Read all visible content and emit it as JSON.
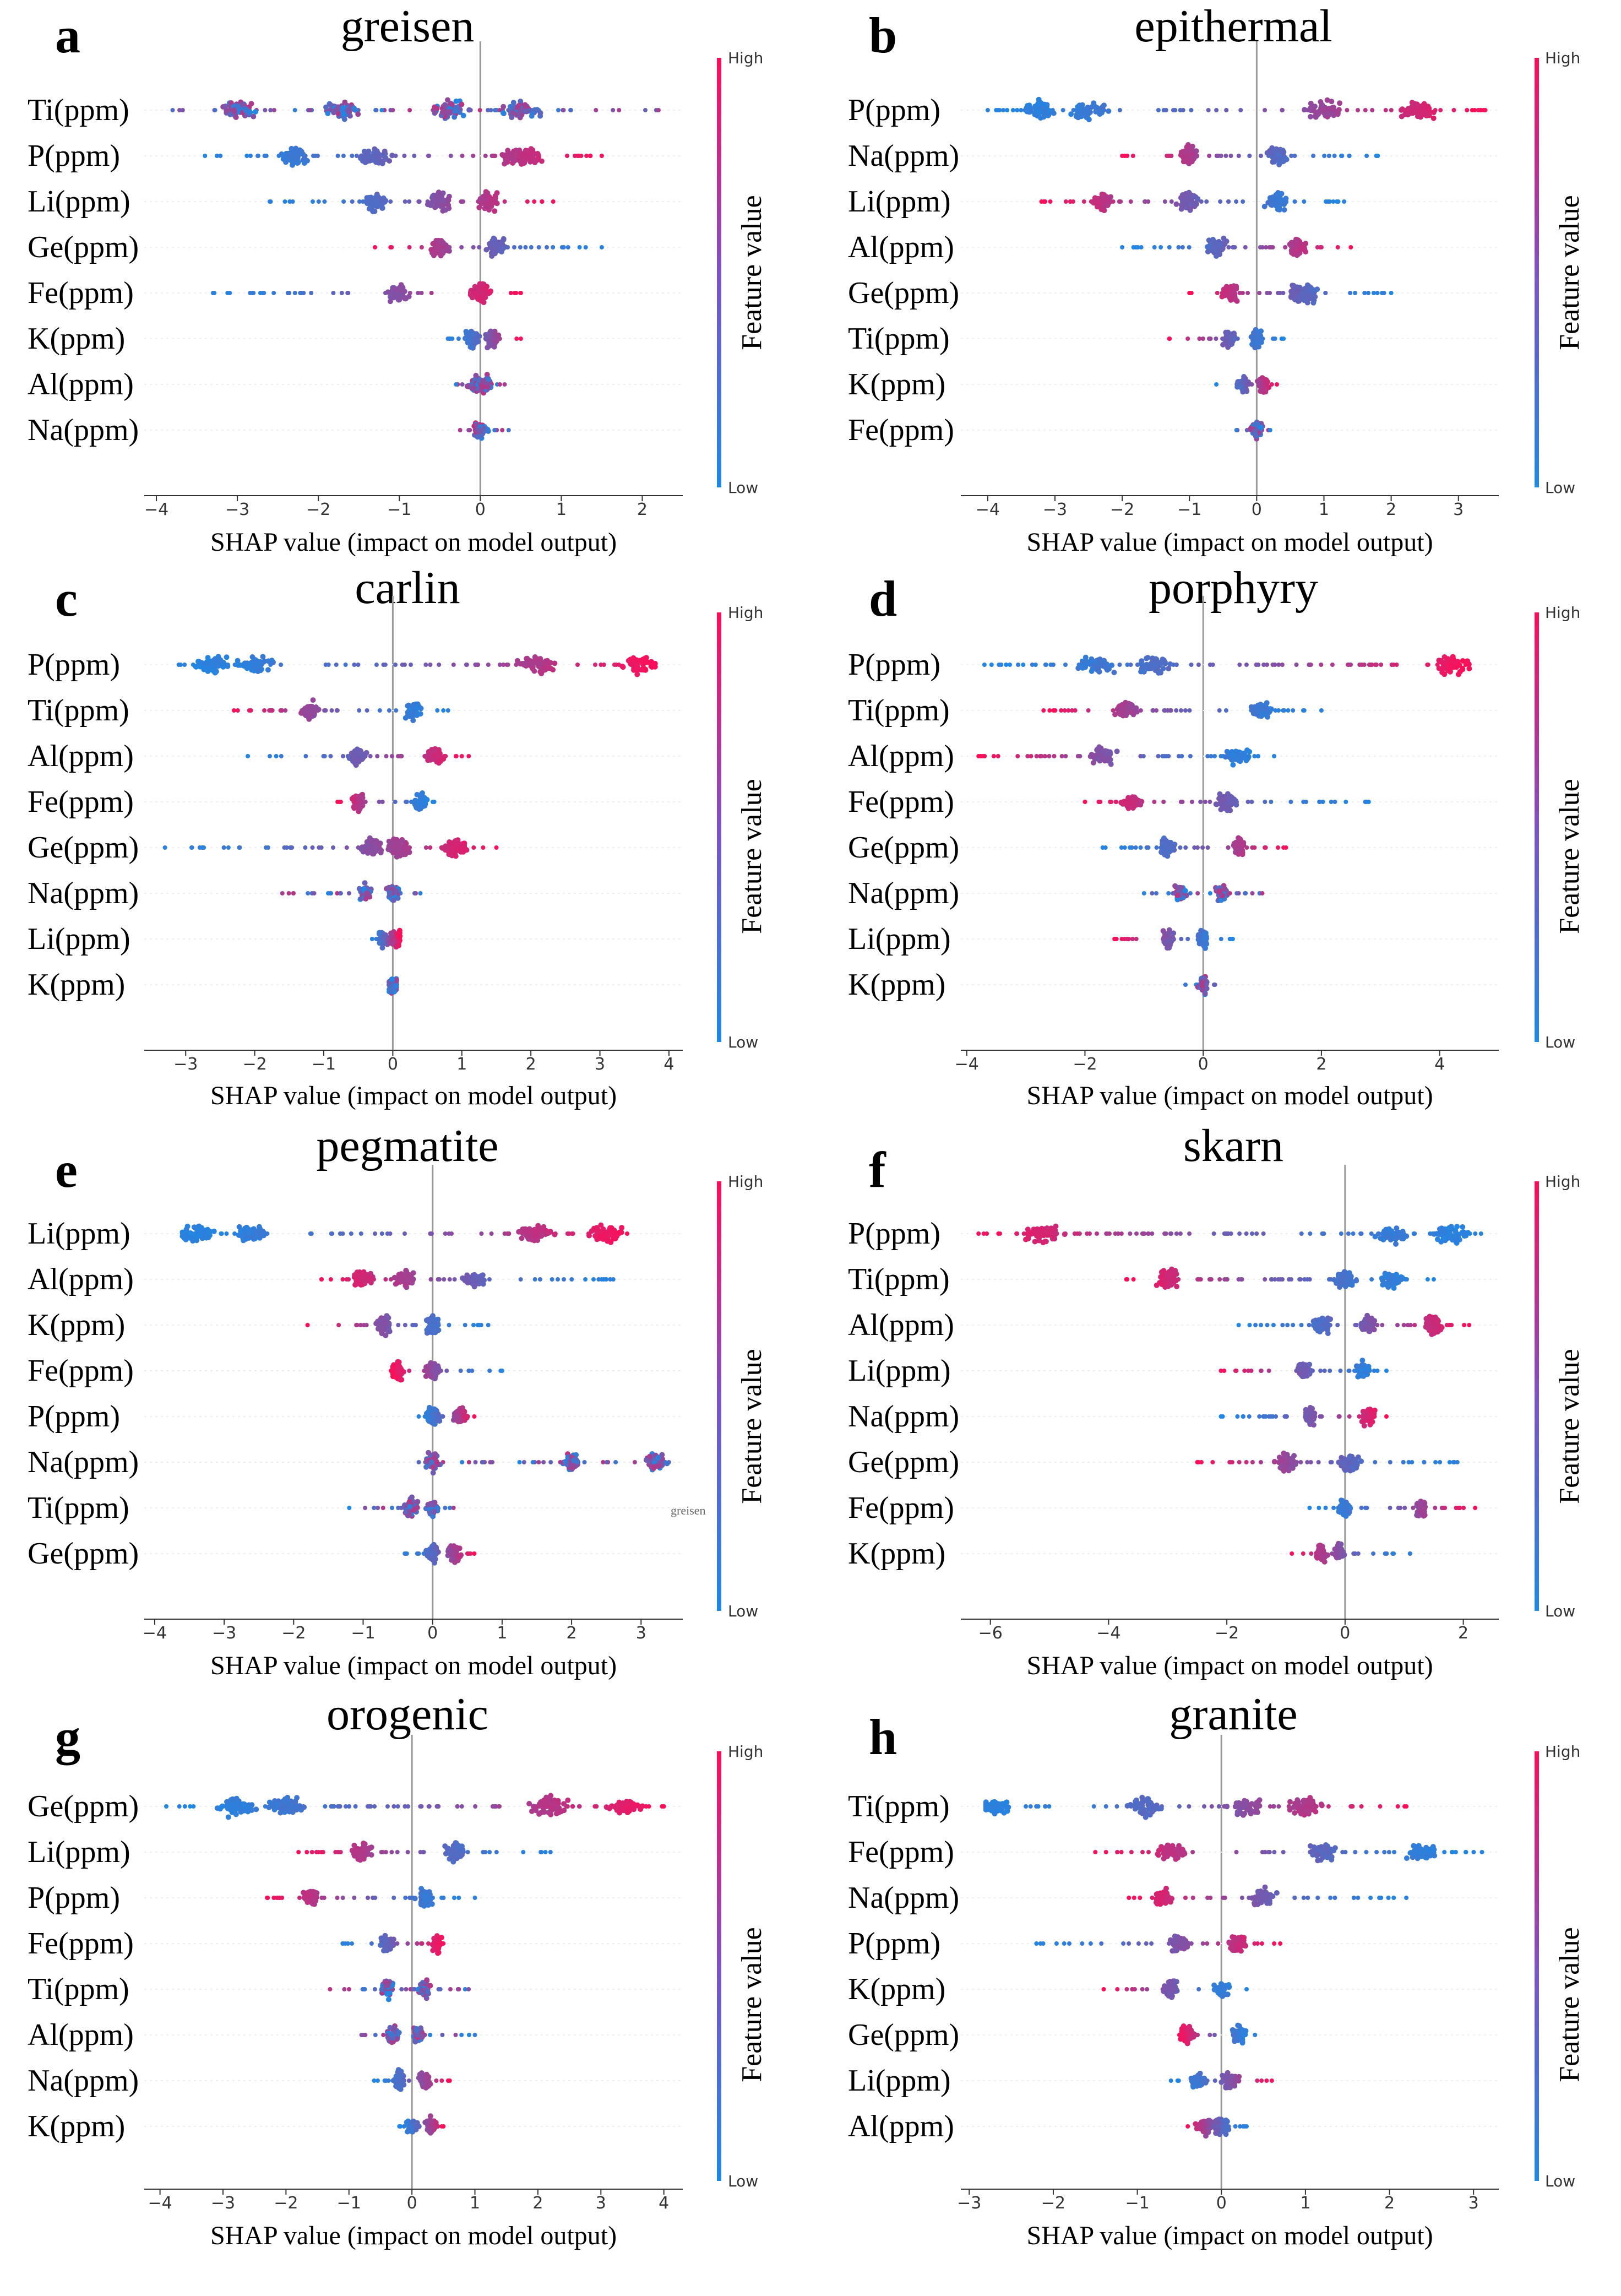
{
  "colors": {
    "low": "#1e88e5",
    "high": "#ff0d57",
    "zero_line": "#999999",
    "axis": "#333333"
  },
  "chart_data": [
    {
      "panel": "a",
      "type": "scatter",
      "title": "greisen",
      "xlabel": "SHAP value (impact on model output)",
      "colorbar": {
        "title": "Feature value",
        "high": "High",
        "low": "Low"
      },
      "xlim": [
        -4.15,
        2.5
      ],
      "xticks": [
        -4,
        -3,
        -2,
        -1,
        0,
        1,
        2
      ],
      "features": [
        {
          "name": "Ti(ppm)",
          "min": -3.8,
          "max": 2.2,
          "clusters": [
            -3.0,
            -1.7,
            -0.4,
            0.5
          ],
          "high_side": "mixed"
        },
        {
          "name": "P(ppm)",
          "min": -3.4,
          "max": 1.5,
          "clusters": [
            -2.3,
            -1.3,
            0.4,
            0.6
          ],
          "high_side": "right"
        },
        {
          "name": "Li(ppm)",
          "min": -2.6,
          "max": 0.9,
          "clusters": [
            -1.3,
            -0.5,
            0.1
          ],
          "high_side": "right"
        },
        {
          "name": "Ge(ppm)",
          "min": -1.3,
          "max": 1.5,
          "clusters": [
            -0.5,
            0.2
          ],
          "high_side": "left"
        },
        {
          "name": "Fe(ppm)",
          "min": -3.3,
          "max": 0.5,
          "clusters": [
            -1.0,
            0.0
          ],
          "high_side": "right"
        },
        {
          "name": "K(ppm)",
          "min": -0.4,
          "max": 0.5,
          "clusters": [
            -0.1,
            0.15
          ],
          "high_side": "right"
        },
        {
          "name": "Al(ppm)",
          "min": -0.3,
          "max": 0.3,
          "clusters": [
            -0.05,
            0.05
          ],
          "high_side": "mixed"
        },
        {
          "name": "Na(ppm)",
          "min": -0.25,
          "max": 0.35,
          "clusters": [
            0.0
          ],
          "high_side": "mixed"
        }
      ]
    },
    {
      "panel": "b",
      "type": "scatter",
      "title": "epithermal",
      "xlabel": "SHAP value (impact on model output)",
      "colorbar": {
        "title": "Feature value",
        "high": "High",
        "low": "Low"
      },
      "xlim": [
        -4.4,
        3.6
      ],
      "xticks": [
        -4,
        -3,
        -2,
        -1,
        0,
        1,
        2,
        3
      ],
      "features": [
        {
          "name": "P(ppm)",
          "min": -4.0,
          "max": 3.4,
          "clusters": [
            -3.2,
            -2.5,
            1.0,
            2.4
          ],
          "high_side": "right"
        },
        {
          "name": "Na(ppm)",
          "min": -2.0,
          "max": 1.8,
          "clusters": [
            -1.0,
            0.3
          ],
          "high_side": "left"
        },
        {
          "name": "Li(ppm)",
          "min": -3.2,
          "max": 1.3,
          "clusters": [
            -2.3,
            -1.0,
            0.3
          ],
          "high_side": "left"
        },
        {
          "name": "Al(ppm)",
          "min": -2.0,
          "max": 1.4,
          "clusters": [
            -0.6,
            0.6
          ],
          "high_side": "right"
        },
        {
          "name": "Ge(ppm)",
          "min": -1.0,
          "max": 2.0,
          "clusters": [
            -0.4,
            0.6,
            0.8
          ],
          "high_side": "left"
        },
        {
          "name": "Ti(ppm)",
          "min": -1.3,
          "max": 0.4,
          "clusters": [
            -0.4,
            0.0
          ],
          "high_side": "left"
        },
        {
          "name": "K(ppm)",
          "min": -0.6,
          "max": 0.3,
          "clusters": [
            -0.2,
            0.1
          ],
          "high_side": "right"
        },
        {
          "name": "Fe(ppm)",
          "min": -0.3,
          "max": 0.2,
          "clusters": [
            0.0
          ],
          "high_side": "mixed"
        }
      ]
    },
    {
      "panel": "c",
      "type": "scatter",
      "title": "carlin",
      "xlabel": "SHAP value (impact on model output)",
      "colorbar": {
        "title": "Feature value",
        "high": "High",
        "low": "Low"
      },
      "xlim": [
        -3.6,
        4.2
      ],
      "xticks": [
        -3,
        -2,
        -1,
        0,
        1,
        2,
        3,
        4
      ],
      "features": [
        {
          "name": "P(ppm)",
          "min": -3.1,
          "max": 3.8,
          "clusters": [
            -2.6,
            -2.0,
            2.1,
            3.6
          ],
          "high_side": "right"
        },
        {
          "name": "Ti(ppm)",
          "min": -2.3,
          "max": 0.8,
          "clusters": [
            -1.2,
            0.3
          ],
          "high_side": "left"
        },
        {
          "name": "Al(ppm)",
          "min": -2.1,
          "max": 1.1,
          "clusters": [
            -0.5,
            0.6
          ],
          "high_side": "right"
        },
        {
          "name": "Fe(ppm)",
          "min": -0.8,
          "max": 0.6,
          "clusters": [
            -0.5,
            0.4
          ],
          "high_side": "left"
        },
        {
          "name": "Ge(ppm)",
          "min": -3.3,
          "max": 1.5,
          "clusters": [
            -0.3,
            0.1,
            0.9
          ],
          "high_side": "right"
        },
        {
          "name": "Na(ppm)",
          "min": -1.6,
          "max": 0.4,
          "clusters": [
            -0.4,
            0.0
          ],
          "high_side": "mixed"
        },
        {
          "name": "Li(ppm)",
          "min": -0.3,
          "max": 0.1,
          "clusters": [
            -0.15,
            0.05
          ],
          "high_side": "right"
        },
        {
          "name": "K(ppm)",
          "min": -0.05,
          "max": 0.05,
          "clusters": [
            0.0
          ],
          "high_side": "mixed"
        }
      ]
    },
    {
      "panel": "d",
      "type": "scatter",
      "title": "porphyry",
      "xlabel": "SHAP value (impact on model output)",
      "colorbar": {
        "title": "Feature value",
        "high": "High",
        "low": "Low"
      },
      "xlim": [
        -4.1,
        5.0
      ],
      "xticks": [
        -4,
        -2,
        0,
        2,
        4
      ],
      "features": [
        {
          "name": "P(ppm)",
          "min": -3.7,
          "max": 4.5,
          "clusters": [
            -1.8,
            -0.8,
            4.2
          ],
          "high_side": "right"
        },
        {
          "name": "Ti(ppm)",
          "min": -2.7,
          "max": 2.0,
          "clusters": [
            -1.3,
            1.0
          ],
          "high_side": "left"
        },
        {
          "name": "Al(ppm)",
          "min": -3.8,
          "max": 1.2,
          "clusters": [
            -1.7,
            0.6
          ],
          "high_side": "left"
        },
        {
          "name": "Fe(ppm)",
          "min": -2.0,
          "max": 2.8,
          "clusters": [
            -1.2,
            0.4
          ],
          "high_side": "left"
        },
        {
          "name": "Ge(ppm)",
          "min": -1.7,
          "max": 1.4,
          "clusters": [
            -0.6,
            0.6
          ],
          "high_side": "right"
        },
        {
          "name": "Na(ppm)",
          "min": -1.0,
          "max": 1.0,
          "clusters": [
            -0.4,
            0.3
          ],
          "high_side": "mixed"
        },
        {
          "name": "Li(ppm)",
          "min": -1.5,
          "max": 0.5,
          "clusters": [
            -0.6,
            0.0
          ],
          "high_side": "left"
        },
        {
          "name": "K(ppm)",
          "min": -0.3,
          "max": 0.2,
          "clusters": [
            0.0
          ],
          "high_side": "mixed"
        }
      ]
    },
    {
      "panel": "e",
      "type": "scatter",
      "title": "pegmatite",
      "xlabel": "SHAP value (impact on model output)",
      "colorbar": {
        "title": "Feature value",
        "high": "High",
        "low": "Low"
      },
      "xlim": [
        -4.15,
        3.6
      ],
      "xticks": [
        -4,
        -3,
        -2,
        -1,
        0,
        1,
        2,
        3
      ],
      "features": [
        {
          "name": "Li(ppm)",
          "min": -3.6,
          "max": 2.8,
          "clusters": [
            -3.4,
            -2.6,
            1.5,
            2.5
          ],
          "high_side": "right"
        },
        {
          "name": "Al(ppm)",
          "min": -1.6,
          "max": 2.6,
          "clusters": [
            -1.0,
            -0.4,
            0.6
          ],
          "high_side": "left"
        },
        {
          "name": "K(ppm)",
          "min": -1.8,
          "max": 0.8,
          "clusters": [
            -0.7,
            0.0
          ],
          "high_side": "left"
        },
        {
          "name": "Fe(ppm)",
          "min": -0.6,
          "max": 1.0,
          "clusters": [
            -0.5,
            0.0
          ],
          "high_side": "left"
        },
        {
          "name": "P(ppm)",
          "min": -0.2,
          "max": 0.6,
          "clusters": [
            0.0,
            0.4
          ],
          "high_side": "right"
        },
        {
          "name": "Na(ppm)",
          "min": -0.2,
          "max": 3.4,
          "clusters": [
            0.0,
            2.0,
            3.2
          ],
          "high_side": "mixed"
        },
        {
          "name": "Ti(ppm)",
          "min": -1.2,
          "max": 0.3,
          "clusters": [
            -0.3,
            0.0
          ],
          "high_side": "mixed"
        },
        {
          "name": "Ge(ppm)",
          "min": -0.4,
          "max": 0.6,
          "clusters": [
            0.0,
            0.3
          ],
          "high_side": "right"
        }
      ]
    },
    {
      "panel": "f",
      "type": "scatter",
      "title": "skarn",
      "xlabel": "SHAP value (impact on model output)",
      "colorbar": {
        "title": "Feature value",
        "high": "High",
        "low": "Low"
      },
      "xlim": [
        -6.5,
        2.6
      ],
      "xticks": [
        -6,
        -4,
        -2,
        0,
        2
      ],
      "features": [
        {
          "name": "P(ppm)",
          "min": -6.2,
          "max": 2.3,
          "clusters": [
            -5.1,
            0.8,
            1.8
          ],
          "high_side": "left"
        },
        {
          "name": "Ti(ppm)",
          "min": -3.7,
          "max": 1.5,
          "clusters": [
            -3.0,
            0.0,
            0.8
          ],
          "high_side": "left"
        },
        {
          "name": "Al(ppm)",
          "min": -1.8,
          "max": 2.1,
          "clusters": [
            -0.4,
            0.4,
            1.5
          ],
          "high_side": "right"
        },
        {
          "name": "Li(ppm)",
          "min": -2.1,
          "max": 0.7,
          "clusters": [
            -0.7,
            0.3
          ],
          "high_side": "left"
        },
        {
          "name": "Na(ppm)",
          "min": -2.1,
          "max": 0.7,
          "clusters": [
            -0.6,
            0.4
          ],
          "high_side": "right"
        },
        {
          "name": "Ge(ppm)",
          "min": -2.5,
          "max": 1.9,
          "clusters": [
            -1.0,
            0.1
          ],
          "high_side": "left"
        },
        {
          "name": "Fe(ppm)",
          "min": -0.6,
          "max": 2.2,
          "clusters": [
            0.0,
            1.3
          ],
          "high_side": "right"
        },
        {
          "name": "K(ppm)",
          "min": -0.9,
          "max": 1.1,
          "clusters": [
            -0.4,
            -0.1
          ],
          "high_side": "left"
        }
      ]
    },
    {
      "panel": "g",
      "type": "scatter",
      "title": "orogenic",
      "xlabel": "SHAP value (impact on model output)",
      "colorbar": {
        "title": "Feature value",
        "high": "High",
        "low": "Low"
      },
      "xlim": [
        -4.25,
        4.3
      ],
      "xticks": [
        -4,
        -3,
        -2,
        -1,
        0,
        1,
        2,
        3,
        4
      ],
      "features": [
        {
          "name": "Ge(ppm)",
          "min": -3.9,
          "max": 4.0,
          "clusters": [
            -2.8,
            -2.0,
            2.2,
            3.4
          ],
          "high_side": "right"
        },
        {
          "name": "Li(ppm)",
          "min": -1.8,
          "max": 2.2,
          "clusters": [
            -0.8,
            0.7
          ],
          "high_side": "left"
        },
        {
          "name": "P(ppm)",
          "min": -2.3,
          "max": 1.0,
          "clusters": [
            -1.6,
            0.2
          ],
          "high_side": "left"
        },
        {
          "name": "Fe(ppm)",
          "min": -1.1,
          "max": 0.5,
          "clusters": [
            -0.4,
            0.4
          ],
          "high_side": "right"
        },
        {
          "name": "Ti(ppm)",
          "min": -1.3,
          "max": 0.9,
          "clusters": [
            -0.4,
            0.2
          ],
          "high_side": "mixed"
        },
        {
          "name": "Al(ppm)",
          "min": -0.8,
          "max": 1.0,
          "clusters": [
            -0.3,
            0.1
          ],
          "high_side": "mixed"
        },
        {
          "name": "Na(ppm)",
          "min": -0.6,
          "max": 0.6,
          "clusters": [
            -0.2,
            0.2
          ],
          "high_side": "right"
        },
        {
          "name": "K(ppm)",
          "min": -0.2,
          "max": 0.5,
          "clusters": [
            0.0,
            0.3
          ],
          "high_side": "right"
        }
      ]
    },
    {
      "panel": "h",
      "type": "scatter",
      "title": "granite",
      "xlabel": "SHAP value (impact on model output)",
      "colorbar": {
        "title": "Feature value",
        "high": "High",
        "low": "Low"
      },
      "xlim": [
        -3.1,
        3.3
      ],
      "xticks": [
        -3,
        -2,
        -1,
        0,
        1,
        2,
        3
      ],
      "features": [
        {
          "name": "Ti(ppm)",
          "min": -2.8,
          "max": 2.2,
          "clusters": [
            -2.7,
            -0.9,
            0.3,
            1.0
          ],
          "high_side": "right"
        },
        {
          "name": "Fe(ppm)",
          "min": -1.5,
          "max": 3.1,
          "clusters": [
            -0.6,
            1.2,
            2.4
          ],
          "high_side": "left"
        },
        {
          "name": "Na(ppm)",
          "min": -1.1,
          "max": 2.2,
          "clusters": [
            -0.7,
            0.5
          ],
          "high_side": "left"
        },
        {
          "name": "P(ppm)",
          "min": -2.2,
          "max": 0.7,
          "clusters": [
            -0.5,
            0.2
          ],
          "high_side": "right"
        },
        {
          "name": "K(ppm)",
          "min": -1.4,
          "max": 0.3,
          "clusters": [
            -0.6,
            0.0
          ],
          "high_side": "left"
        },
        {
          "name": "Ge(ppm)",
          "min": -0.5,
          "max": 0.4,
          "clusters": [
            -0.4,
            0.2
          ],
          "high_side": "left"
        },
        {
          "name": "Li(ppm)",
          "min": -0.6,
          "max": 0.6,
          "clusters": [
            -0.3,
            0.1
          ],
          "high_side": "right"
        },
        {
          "name": "Al(ppm)",
          "min": -0.4,
          "max": 0.3,
          "clusters": [
            -0.2,
            0.0
          ],
          "high_side": "left"
        }
      ]
    }
  ],
  "stray_annotation": "greisen"
}
